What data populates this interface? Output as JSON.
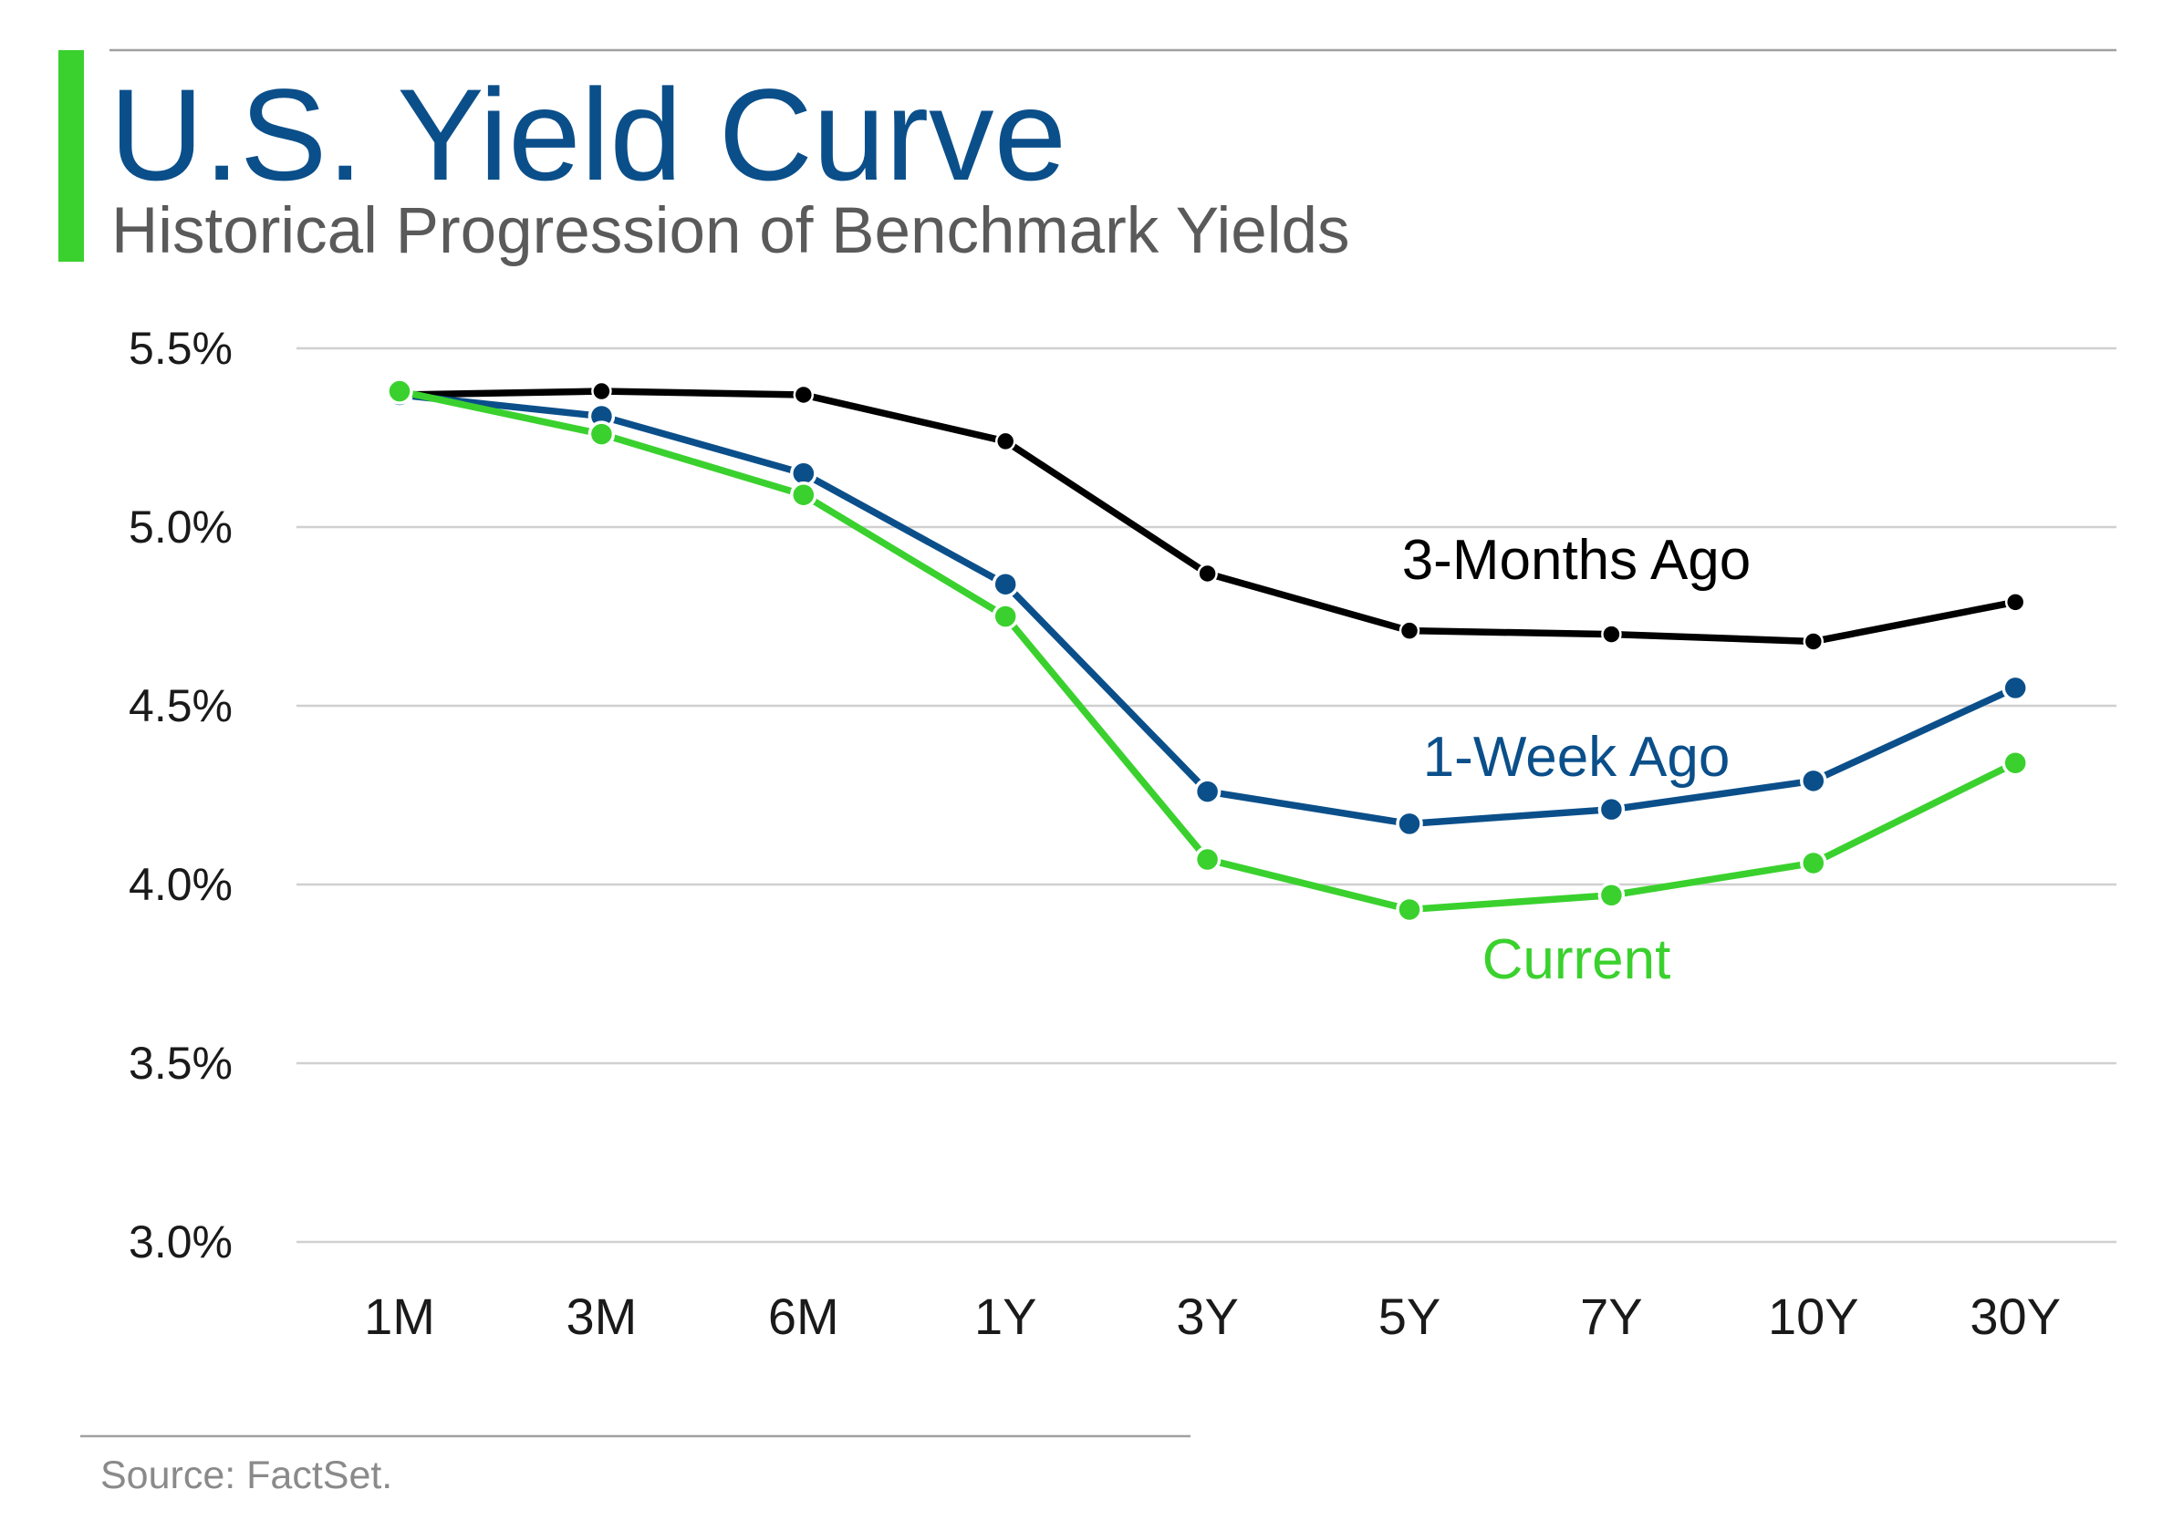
{
  "title": "U.S. Yield Curve",
  "subtitle": "Historical Progression of Benchmark Yields",
  "source": "Source: FactSet.",
  "colors": {
    "accent_bar": "#3ad12e",
    "title": "#0b4f8a",
    "subtitle": "#5a5a5a",
    "grid": "#d0d0d0"
  },
  "chart_data": {
    "type": "line",
    "title": "",
    "xlabel": "",
    "ylabel": "",
    "categories": [
      "1M",
      "3M",
      "6M",
      "1Y",
      "3Y",
      "5Y",
      "7Y",
      "10Y",
      "30Y"
    ],
    "ylim": [
      3.0,
      5.5
    ],
    "yticks": [
      3.0,
      3.5,
      4.0,
      4.5,
      5.0,
      5.5
    ],
    "ytick_labels": [
      "3.0%",
      "3.5%",
      "4.0%",
      "4.5%",
      "5.0%",
      "5.5%"
    ],
    "grid": true,
    "legend": "inline labels",
    "series": [
      {
        "name": "3-Months Ago",
        "color": "#000000",
        "marker": "small",
        "values": [
          5.37,
          5.38,
          5.37,
          5.24,
          4.87,
          4.71,
          4.7,
          4.68,
          4.79
        ]
      },
      {
        "name": "1-Week Ago",
        "color": "#0b4f8a",
        "marker": "large",
        "values": [
          5.37,
          5.31,
          5.15,
          4.84,
          4.26,
          4.17,
          4.21,
          4.29,
          4.55
        ]
      },
      {
        "name": "Current",
        "color": "#3ad12e",
        "marker": "large",
        "values": [
          5.38,
          5.26,
          5.09,
          4.75,
          4.07,
          3.93,
          3.97,
          4.06,
          4.34
        ]
      }
    ]
  }
}
